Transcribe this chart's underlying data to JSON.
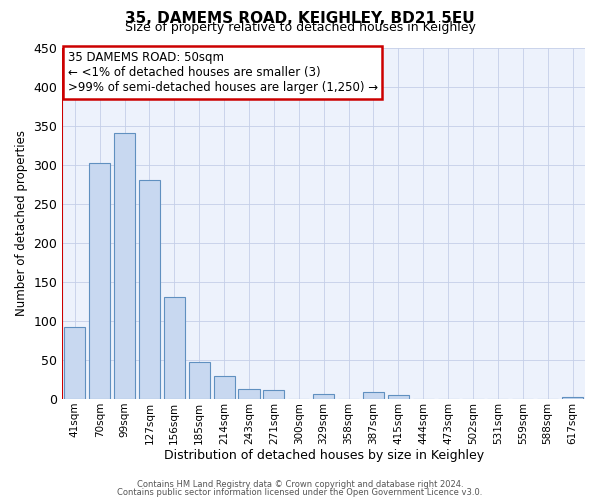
{
  "title": "35, DAMEMS ROAD, KEIGHLEY, BD21 5EU",
  "subtitle": "Size of property relative to detached houses in Keighley",
  "xlabel": "Distribution of detached houses by size in Keighley",
  "ylabel": "Number of detached properties",
  "annotation_line1": "35 DAMEMS ROAD: 50sqm",
  "annotation_line2": "← <1% of detached houses are smaller (3)",
  "annotation_line3": ">99% of semi-detached houses are larger (1,250) →",
  "footer_line1": "Contains HM Land Registry data © Crown copyright and database right 2024.",
  "footer_line2": "Contains public sector information licensed under the Open Government Licence v3.0.",
  "bar_labels": [
    "41sqm",
    "70sqm",
    "99sqm",
    "127sqm",
    "156sqm",
    "185sqm",
    "214sqm",
    "243sqm",
    "271sqm",
    "300sqm",
    "329sqm",
    "358sqm",
    "387sqm",
    "415sqm",
    "444sqm",
    "473sqm",
    "502sqm",
    "531sqm",
    "559sqm",
    "588sqm",
    "617sqm"
  ],
  "bar_heights": [
    92,
    302,
    340,
    280,
    130,
    47,
    30,
    13,
    12,
    0,
    7,
    0,
    9,
    5,
    0,
    0,
    0,
    0,
    0,
    0,
    3
  ],
  "bar_color": "#c8d8f0",
  "bar_edge_color": "#6090c0",
  "marker_color": "#cc0000",
  "ylim": [
    0,
    450
  ],
  "yticks": [
    0,
    50,
    100,
    150,
    200,
    250,
    300,
    350,
    400,
    450
  ],
  "bg_color": "#edf2fc",
  "grid_color": "#c5cfe8",
  "annotation_box_color": "#cc0000",
  "title_fontsize": 11,
  "subtitle_fontsize": 9
}
